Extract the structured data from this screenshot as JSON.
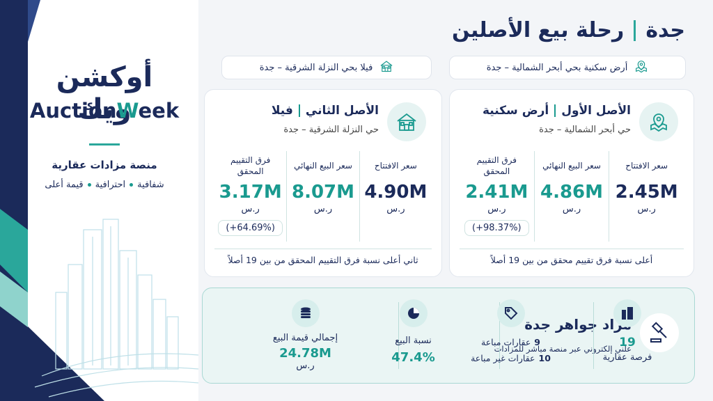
{
  "header": {
    "city": "جدة",
    "title": "رحلة بيع الأصلين"
  },
  "brand": {
    "arabic": "أوكشن ويك",
    "english_start": "Auction",
    "english_mark": "W",
    "english_end": "eek",
    "tagline": "منصة مزادات عقارية",
    "values": [
      "شفافية",
      "احترافية",
      "قيمة أعلى"
    ]
  },
  "locations": [
    "أرض سكنية بحي أبحر الشمالية – جدة",
    "فيلا بحي النزلة الشرقية – جدة"
  ],
  "assets": [
    {
      "label": "الأصل الأول",
      "type": "أرض سكنية",
      "district": "حي أبحر الشمالية – جدة",
      "metrics": [
        {
          "label": "سعر الافتتاح",
          "value": "2.45M",
          "unit": "ر.س"
        },
        {
          "label": "سعر البيع النهائي",
          "value": "4.86M",
          "unit": "ر.س"
        },
        {
          "label": "فرق التقييم المحقق",
          "value": "2.41M",
          "unit": "ر.س",
          "change": "(+98.37%)"
        }
      ],
      "note": "أعلى نسبة فرق تقييم محقق من بين 19 أصلاً"
    },
    {
      "label": "الأصل الثاني",
      "type": "فيلا",
      "district": "حي النزلة الشرقية – جدة",
      "metrics": [
        {
          "label": "سعر الافتتاح",
          "value": "4.90M",
          "unit": "ر.س"
        },
        {
          "label": "سعر البيع النهائي",
          "value": "8.07M",
          "unit": "ر.س"
        },
        {
          "label": "فرق التقييم المحقق",
          "value": "3.17M",
          "unit": "ر.س",
          "change": "(+64.69%)"
        }
      ],
      "note": "ثاني أعلى نسبة فرق التقييم المحقق من بين 19 أصلاً"
    }
  ],
  "summary": {
    "title": "مزاد جواهر جدة",
    "subtitle": "علني إلكتروني عبر منصة مباشر للمزادات",
    "opportunities": {
      "value": "19",
      "label": "فرصة عقارية"
    },
    "properties": {
      "sold_count": "9",
      "sold_label": "عقارات مباعة",
      "unsold_count": "10",
      "unsold_label": "عقارات غير مباعة"
    },
    "sale_ratio": {
      "label": "نسبة البيع",
      "value": "47.4%"
    },
    "total": {
      "label": "إجمالي قيمة البيع",
      "value": "24.78M",
      "unit": "ر.س"
    }
  }
}
